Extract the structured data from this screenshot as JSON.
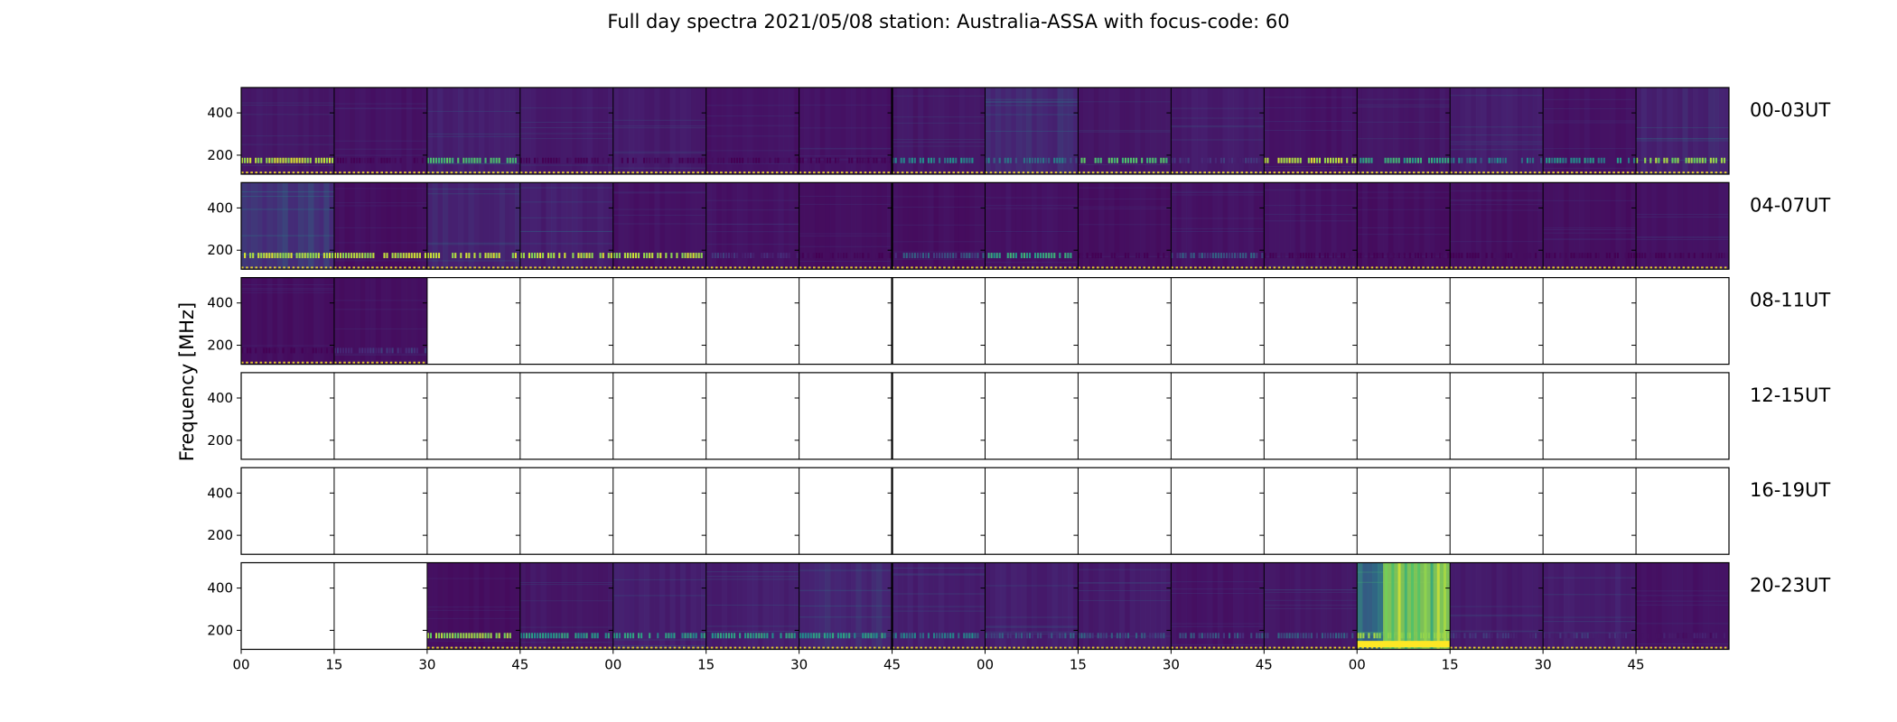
{
  "chart_data": {
    "type": "heatmap",
    "title": "Full day spectra 2021/05/08 station: Australia-ASSA with focus-code: 60",
    "ylabel": "Frequency [MHz]",
    "xlabel": "",
    "x_tick_labels": [
      "00",
      "15",
      "30",
      "45",
      "00",
      "15",
      "30",
      "45",
      "00",
      "15",
      "30",
      "45",
      "00",
      "15",
      "30",
      "45"
    ],
    "y_ticks": [
      200,
      400
    ],
    "ylim": [
      110,
      520
    ],
    "colormap": "viridis",
    "colors": {
      "background": "#440154",
      "low": "#472c7a",
      "mid": "#21918c",
      "high": "#5ec962",
      "max": "#fde725"
    },
    "panels_per_row": 16,
    "rows": [
      {
        "label": "00-03UT",
        "present": [
          true,
          true,
          true,
          true,
          true,
          true,
          true,
          true,
          true,
          true,
          true,
          true,
          true,
          true,
          true,
          true
        ],
        "intensity": [
          0.25,
          0.2,
          0.35,
          0.3,
          0.3,
          0.2,
          0.2,
          0.25,
          0.45,
          0.25,
          0.3,
          0.2,
          0.25,
          0.35,
          0.2,
          0.4
        ],
        "band_200MHz": [
          0.95,
          0.1,
          0.75,
          0.1,
          0.1,
          0.1,
          0.1,
          0.55,
          0.45,
          0.75,
          0.3,
          0.95,
          0.65,
          0.5,
          0.55,
          0.9
        ]
      },
      {
        "label": "04-07UT",
        "present": [
          true,
          true,
          true,
          true,
          true,
          true,
          true,
          true,
          true,
          true,
          true,
          true,
          true,
          true,
          true,
          true
        ],
        "intensity": [
          0.55,
          0.15,
          0.4,
          0.35,
          0.2,
          0.2,
          0.15,
          0.15,
          0.2,
          0.15,
          0.2,
          0.2,
          0.15,
          0.15,
          0.15,
          0.2
        ],
        "band_200MHz": [
          0.95,
          0.95,
          0.95,
          0.95,
          0.95,
          0.3,
          0.1,
          0.4,
          0.65,
          0.1,
          0.4,
          0.1,
          0.1,
          0.1,
          0.1,
          0.1
        ]
      },
      {
        "label": "08-11UT",
        "present": [
          true,
          true,
          false,
          false,
          false,
          false,
          false,
          false,
          false,
          false,
          false,
          false,
          false,
          false,
          false,
          false
        ],
        "intensity": [
          0.15,
          0.15,
          0,
          0,
          0,
          0,
          0,
          0,
          0,
          0,
          0,
          0,
          0,
          0,
          0,
          0
        ],
        "band_200MHz": [
          0.1,
          0.3,
          0,
          0,
          0,
          0,
          0,
          0,
          0,
          0,
          0,
          0,
          0,
          0,
          0,
          0
        ]
      },
      {
        "label": "12-15UT",
        "present": [
          false,
          false,
          false,
          false,
          false,
          false,
          false,
          false,
          false,
          false,
          false,
          false,
          false,
          false,
          false,
          false
        ],
        "intensity": [
          0,
          0,
          0,
          0,
          0,
          0,
          0,
          0,
          0,
          0,
          0,
          0,
          0,
          0,
          0,
          0
        ],
        "band_200MHz": [
          0,
          0,
          0,
          0,
          0,
          0,
          0,
          0,
          0,
          0,
          0,
          0,
          0,
          0,
          0,
          0
        ]
      },
      {
        "label": "16-19UT",
        "present": [
          false,
          false,
          false,
          false,
          false,
          false,
          false,
          false,
          false,
          false,
          false,
          false,
          false,
          false,
          false,
          false
        ],
        "intensity": [
          0,
          0,
          0,
          0,
          0,
          0,
          0,
          0,
          0,
          0,
          0,
          0,
          0,
          0,
          0,
          0
        ],
        "band_200MHz": [
          0,
          0,
          0,
          0,
          0,
          0,
          0,
          0,
          0,
          0,
          0,
          0,
          0,
          0,
          0,
          0
        ]
      },
      {
        "label": "20-23UT",
        "present": [
          false,
          false,
          true,
          true,
          true,
          true,
          true,
          true,
          true,
          true,
          true,
          true,
          true,
          true,
          true,
          true
        ],
        "intensity": [
          0,
          0,
          0.15,
          0.25,
          0.35,
          0.35,
          0.45,
          0.35,
          0.35,
          0.3,
          0.2,
          0.25,
          0.9,
          0.3,
          0.35,
          0.2
        ],
        "band_200MHz": [
          0,
          0,
          0.9,
          0.6,
          0.6,
          0.6,
          0.6,
          0.5,
          0.4,
          0.4,
          0.4,
          0.4,
          0.95,
          0.3,
          0.3,
          0.2
        ]
      }
    ]
  }
}
